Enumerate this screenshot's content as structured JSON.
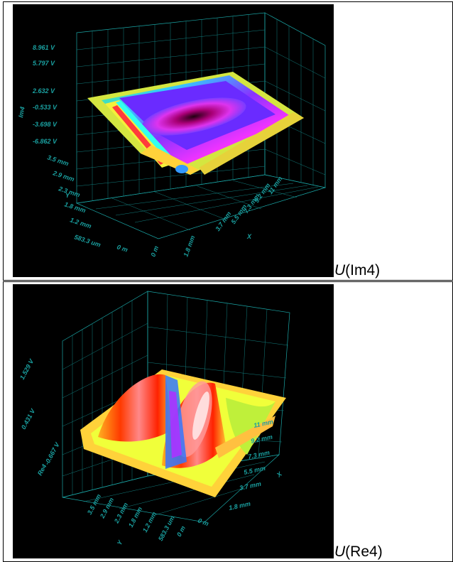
{
  "chart_data": [
    {
      "type": "surface3d",
      "caption_var": "U",
      "caption_arg": "(Im4)",
      "z_axis_label": "Im4",
      "z_ticks": [
        "8.961 V",
        "5.797 V",
        "2.632 V",
        "-0.533 V",
        "-3.698 V",
        "-6.862 V"
      ],
      "y_axis_label": "Y",
      "y_ticks": [
        "3.5 mm",
        "2.9 mm",
        "2.3 mm",
        "1.8 mm",
        "1.2 mm",
        "583.3 um",
        "0 m"
      ],
      "x_axis_label": "X",
      "x_ticks": [
        "0 m",
        "1.8 mm",
        "3.7 mm",
        "5.5 mm",
        "7.3 mm",
        "9.2 mm",
        "11 mm"
      ],
      "grid": true
    },
    {
      "type": "surface3d",
      "caption_var": "U",
      "caption_arg": "(Re4)",
      "z_axis_label": "Re4",
      "z_ticks": [
        "1.529 V",
        "0.431 V",
        "-0.667 V"
      ],
      "y_axis_label": "Y",
      "y_ticks": [
        "3.5 mm",
        "2.9 mm",
        "2.3 mm",
        "1.8 mm",
        "1.2 mm",
        "583.3 um",
        "0 m"
      ],
      "x_axis_label": "X",
      "x_ticks": [
        "0 m",
        "1.8 mm",
        "3.7 mm",
        "5.5 mm",
        "7.3 mm",
        "9.2 mm",
        "11 mm"
      ],
      "grid": true
    }
  ]
}
